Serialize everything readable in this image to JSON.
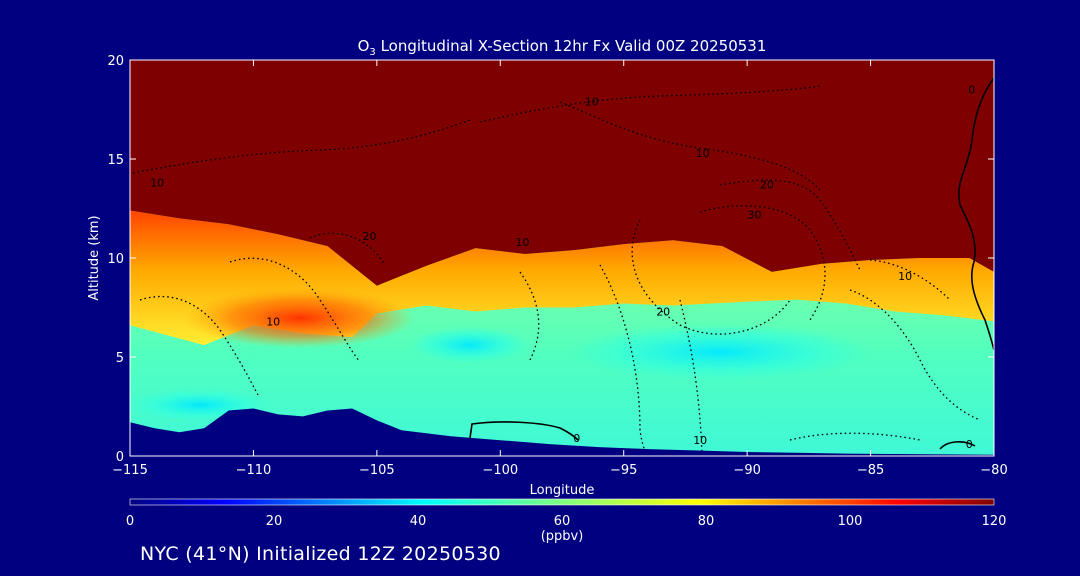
{
  "chart_data": {
    "type": "heatmap",
    "title": {
      "species_main": "O",
      "species_sub": "3",
      "rest": " Longitudinal X-Section 12hr  Fx Valid 00Z 20250531"
    },
    "xlabel": "Longitude",
    "ylabel": "Altitude (km)",
    "xlim": [
      -115,
      -80
    ],
    "ylim": [
      0,
      20
    ],
    "xticks": [
      -115,
      -110,
      -105,
      -100,
      -95,
      -90,
      -85,
      -80
    ],
    "xtick_labels": [
      "−115",
      "−110",
      "−105",
      "−100",
      "−95",
      "−90",
      "−85",
      "−80"
    ],
    "yticks": [
      0,
      5,
      10,
      15,
      20
    ],
    "ytick_labels": [
      "0",
      "5",
      "10",
      "15",
      "20"
    ],
    "colorbar": {
      "label": "(ppbv)",
      "range": [
        0,
        120
      ],
      "ticks": [
        0,
        20,
        40,
        60,
        80,
        100,
        120
      ],
      "tick_labels": [
        "0",
        "20",
        "40",
        "60",
        "80",
        "100",
        "120"
      ]
    },
    "tropopause_km": [
      [
        -115,
        12.4
      ],
      [
        -113,
        12.0
      ],
      [
        -111,
        11.7
      ],
      [
        -109,
        11.2
      ],
      [
        -107,
        10.6
      ],
      [
        -105,
        8.6
      ],
      [
        -103,
        9.6
      ],
      [
        -101,
        10.5
      ],
      [
        -99,
        10.2
      ],
      [
        -97,
        10.4
      ],
      [
        -95,
        10.7
      ],
      [
        -93,
        10.9
      ],
      [
        -91,
        10.6
      ],
      [
        -89,
        9.3
      ],
      [
        -87,
        9.7
      ],
      [
        -85,
        9.9
      ],
      [
        -83,
        10.0
      ],
      [
        -81,
        10.0
      ],
      [
        -80,
        9.3
      ]
    ],
    "upper_trop_max_km": [
      [
        -115,
        6.6
      ],
      [
        -112,
        5.6
      ],
      [
        -110,
        6.6
      ],
      [
        -108,
        6.2
      ],
      [
        -106,
        6.0
      ],
      [
        -105,
        7.2
      ],
      [
        -103,
        7.6
      ],
      [
        -101,
        7.3
      ],
      [
        -99,
        7.5
      ],
      [
        -97,
        7.5
      ],
      [
        -95,
        7.7
      ],
      [
        -93,
        7.6
      ],
      [
        -90,
        7.8
      ],
      [
        -88,
        7.9
      ],
      [
        -86,
        7.7
      ],
      [
        -84,
        7.3
      ],
      [
        -82,
        7.1
      ],
      [
        -80,
        6.8
      ]
    ],
    "terrain_km": [
      [
        -115,
        1.7
      ],
      [
        -114,
        1.4
      ],
      [
        -113,
        1.2
      ],
      [
        -112,
        1.4
      ],
      [
        -111,
        2.3
      ],
      [
        -110,
        2.4
      ],
      [
        -109,
        2.1
      ],
      [
        -108,
        2.0
      ],
      [
        -107,
        2.3
      ],
      [
        -106,
        2.4
      ],
      [
        -105,
        1.8
      ],
      [
        -104,
        1.3
      ],
      [
        -102,
        1.0
      ],
      [
        -100,
        0.8
      ],
      [
        -98,
        0.6
      ],
      [
        -96,
        0.45
      ],
      [
        -94,
        0.35
      ],
      [
        -92,
        0.28
      ],
      [
        -90,
        0.2
      ],
      [
        -88,
        0.16
      ],
      [
        -86,
        0.12
      ],
      [
        -84,
        0.1
      ],
      [
        -82,
        0.08
      ],
      [
        -80,
        0.06
      ]
    ],
    "contour_labels": [
      {
        "text": "10",
        "lon": -113.9,
        "alt": 13.6
      },
      {
        "text": "20",
        "lon": -105.3,
        "alt": 10.9
      },
      {
        "text": "10",
        "lon": -99.1,
        "alt": 10.6
      },
      {
        "text": "10",
        "lon": -96.3,
        "alt": 17.7
      },
      {
        "text": "10",
        "lon": -91.8,
        "alt": 15.1
      },
      {
        "text": "20",
        "lon": -89.2,
        "alt": 13.5
      },
      {
        "text": "30",
        "lon": -89.7,
        "alt": 12.0
      },
      {
        "text": "10",
        "lon": -109.2,
        "alt": 6.6
      },
      {
        "text": "20",
        "lon": -93.4,
        "alt": 7.1
      },
      {
        "text": "10",
        "lon": -83.6,
        "alt": 8.9
      },
      {
        "text": "10",
        "lon": -91.9,
        "alt": 0.6
      },
      {
        "text": "0",
        "lon": -96.9,
        "alt": 0.7
      },
      {
        "text": "0",
        "lon": -80.9,
        "alt": 18.3
      },
      {
        "text": "0",
        "lon": -81.0,
        "alt": 0.4
      }
    ]
  },
  "footer_text": "NYC (41°N) Initialized 12Z 20250530"
}
